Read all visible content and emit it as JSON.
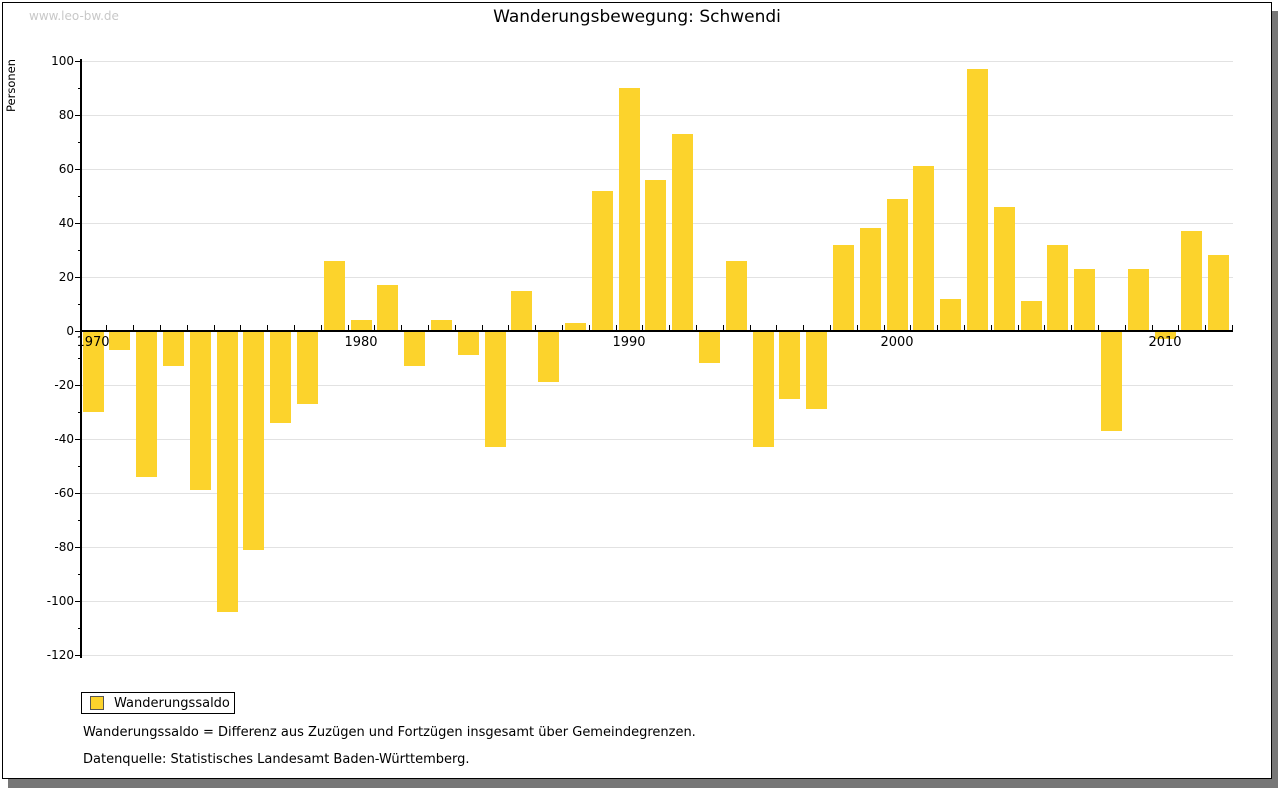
{
  "watermark": "www.leo-bw.de",
  "title": "Wanderungsbewegung: Schwendi",
  "legend": {
    "label": "Wanderungssaldo"
  },
  "footnotes": {
    "definition": "Wanderungssaldo = Differenz aus Zuzügen und Fortzügen insgesamt über Gemeindegrenzen.",
    "source": "Datenquelle: Statistisches Landesamt Baden-Württemberg."
  },
  "colors": {
    "bar": "#fcd32c",
    "grid": "#e2e2e2",
    "axis": "#000000",
    "watermark": "#c8c8c8",
    "frame_shadow": "#777777"
  },
  "chart_data": {
    "type": "bar",
    "title": "Wanderungsbewegung: Schwendi",
    "ylabel": "Personen",
    "xlabel": "",
    "ylim": [
      -120,
      100
    ],
    "yticks": [
      100,
      80,
      60,
      40,
      20,
      0,
      -20,
      -40,
      -60,
      -80,
      -100,
      -120
    ],
    "minor_ytick_step": 10,
    "grid": true,
    "legend_position": "bottom-left",
    "xtick_labeled_years": [
      1970,
      1980,
      1990,
      2000,
      2010
    ],
    "x": [
      1970,
      1971,
      1972,
      1973,
      1974,
      1975,
      1976,
      1977,
      1978,
      1979,
      1980,
      1981,
      1982,
      1983,
      1984,
      1985,
      1986,
      1987,
      1988,
      1989,
      1990,
      1991,
      1992,
      1993,
      1994,
      1995,
      1996,
      1997,
      1998,
      1999,
      2000,
      2001,
      2002,
      2003,
      2004,
      2005,
      2006,
      2007,
      2008,
      2009,
      2010,
      2011,
      2012
    ],
    "series": [
      {
        "name": "Wanderungssaldo",
        "color": "#fcd32c",
        "values": [
          -30,
          -7,
          -54,
          -13,
          -59,
          -104,
          -81,
          -34,
          -27,
          26,
          4,
          17,
          -13,
          4,
          -9,
          -43,
          15,
          -19,
          3,
          52,
          90,
          56,
          73,
          -12,
          26,
          -43,
          -25,
          -29,
          32,
          38,
          49,
          61,
          12,
          97,
          46,
          11,
          32,
          23,
          -37,
          23,
          -3,
          37,
          28
        ]
      }
    ]
  }
}
